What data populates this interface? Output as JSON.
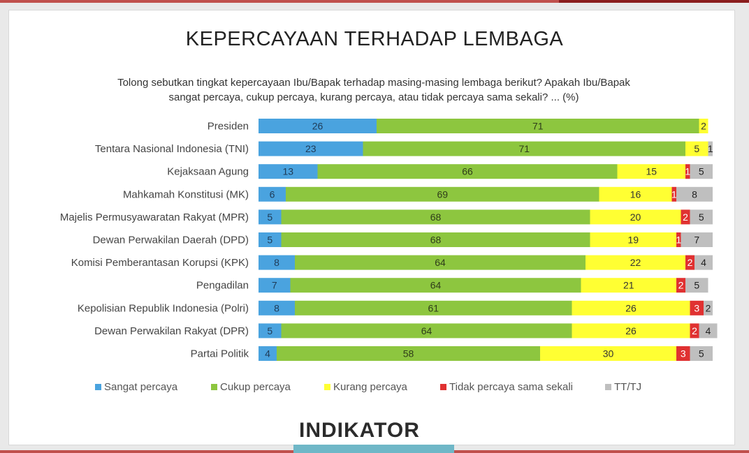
{
  "chart_data": {
    "type": "bar",
    "stacked": true,
    "orientation": "horizontal",
    "title": "KEPERCAYAAN TERHADAP LEMBAGA",
    "subtitle": "Tolong sebutkan tingkat kepercayaan Ibu/Bapak terhadap masing-masing lembaga berikut? Apakah Ibu/Bapak sangat percaya, cukup percaya, kurang percaya, atau tidak percaya sama sekali? ... (%)",
    "categories": [
      "Presiden",
      "Tentara Nasional Indonesia (TNI)",
      "Kejaksaan Agung",
      "Mahkamah Konstitusi (MK)",
      "Majelis Permusyawaratan Rakyat (MPR)",
      "Dewan Perwakilan Daerah (DPD)",
      "Komisi Pemberantasan Korupsi (KPK)",
      "Pengadilan",
      "Kepolisian Republik Indonesia (Polri)",
      "Dewan Perwakilan Rakyat (DPR)",
      "Partai Politik"
    ],
    "series": [
      {
        "name": "Sangat percaya",
        "color": "#4aa3df",
        "values": [
          26,
          23,
          13,
          6,
          5,
          5,
          8,
          7,
          8,
          5,
          4
        ]
      },
      {
        "name": "Cukup percaya",
        "color": "#8dc63f",
        "values": [
          71,
          71,
          66,
          69,
          68,
          68,
          64,
          64,
          61,
          64,
          58
        ]
      },
      {
        "name": "Kurang percaya",
        "color": "#ffff33",
        "values": [
          2,
          5,
          15,
          16,
          20,
          19,
          22,
          21,
          26,
          26,
          30
        ]
      },
      {
        "name": "Tidak percaya sama sekali",
        "color": "#e03131",
        "values": [
          0,
          0,
          1,
          1,
          2,
          1,
          2,
          2,
          3,
          2,
          3
        ]
      },
      {
        "name": "TT/TJ",
        "color": "#bfbfbf",
        "values": [
          0,
          1,
          5,
          8,
          5,
          7,
          4,
          5,
          2,
          4,
          5
        ]
      }
    ],
    "xlim": [
      0,
      100
    ],
    "legend_position": "bottom"
  },
  "logo": "INDIKATOR"
}
